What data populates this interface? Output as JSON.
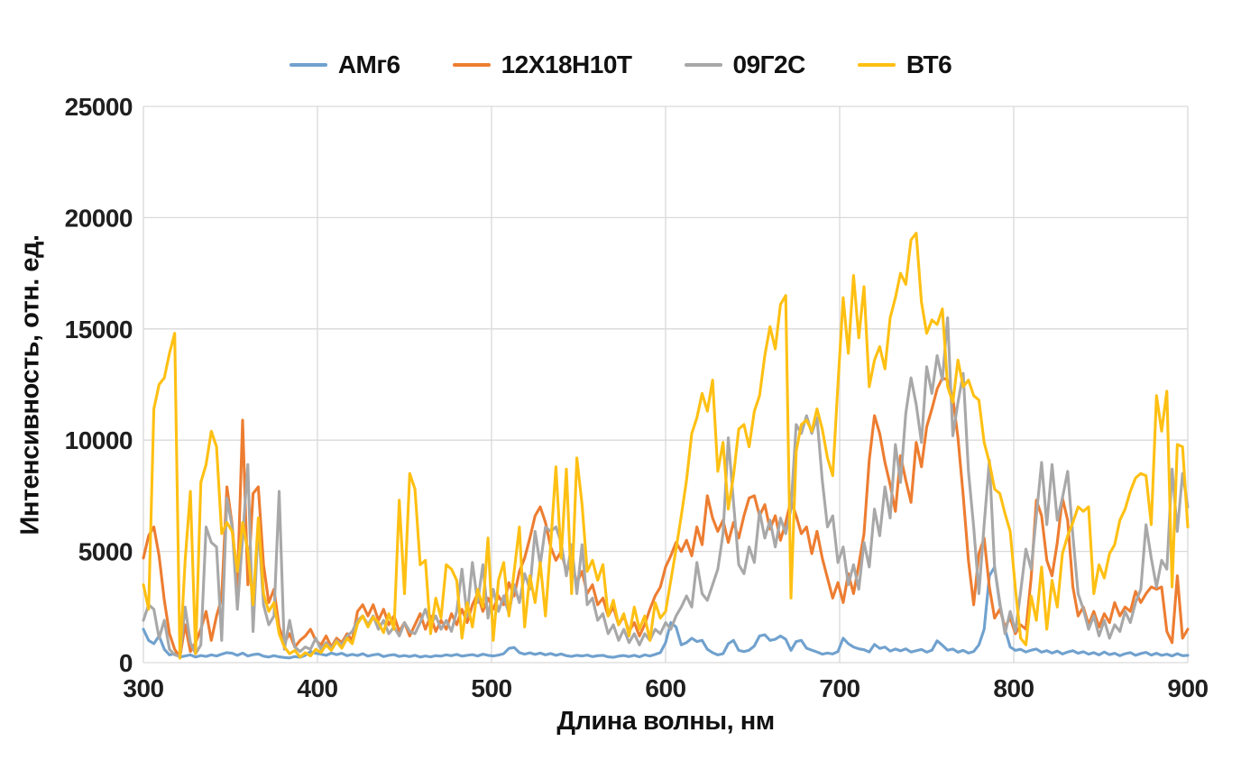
{
  "chart_data": {
    "type": "line",
    "xlabel": "Длина волны, нм",
    "ylabel": "Интенсивность, отн. ед.",
    "xlim": [
      300,
      900
    ],
    "ylim": [
      0,
      25000
    ],
    "x_ticks": [
      300,
      400,
      500,
      600,
      700,
      800,
      900
    ],
    "y_ticks": [
      0,
      5000,
      10000,
      15000,
      20000,
      25000
    ],
    "grid": true,
    "legend_position": "top-center",
    "grid_color": "#d9d9d9",
    "x_start": 300,
    "x_step": 3,
    "series": [
      {
        "name": "АМг6",
        "color": "#70A1CE",
        "values": [
          1500,
          1000,
          850,
          1200,
          600,
          350,
          400,
          250,
          300,
          350,
          250,
          320,
          280,
          350,
          300,
          380,
          450,
          420,
          330,
          430,
          300,
          360,
          390,
          290,
          250,
          310,
          260,
          230,
          210,
          270,
          240,
          330,
          500,
          420,
          380,
          330,
          430,
          360,
          420,
          310,
          370,
          320,
          400,
          290,
          350,
          380,
          270,
          330,
          360,
          280,
          320,
          270,
          330,
          250,
          300,
          260,
          310,
          290,
          350,
          310,
          370,
          290,
          330,
          360,
          300,
          380,
          330,
          300,
          340,
          400,
          640,
          680,
          450,
          380,
          440,
          370,
          430,
          350,
          410,
          330,
          390,
          310,
          280,
          330,
          300,
          340,
          270,
          310,
          330,
          260,
          240,
          290,
          320,
          270,
          330,
          260,
          350,
          300,
          370,
          450,
          900,
          1800,
          1600,
          800,
          900,
          1100,
          950,
          1000,
          600,
          450,
          350,
          400,
          850,
          1000,
          550,
          500,
          560,
          750,
          1200,
          1250,
          1000,
          1050,
          1200,
          1050,
          550,
          950,
          1000,
          650,
          560,
          480,
          380,
          430,
          390,
          500,
          1100,
          850,
          700,
          620,
          580,
          480,
          820,
          640,
          700,
          520,
          610,
          530,
          620,
          480,
          540,
          590,
          470,
          560,
          980,
          780,
          560,
          610,
          470,
          550,
          430,
          500,
          800,
          1500,
          3900,
          4300,
          2600,
          1500,
          700,
          550,
          600,
          480,
          560,
          610,
          470,
          540,
          430,
          520,
          390,
          480,
          540,
          420,
          490,
          380,
          450,
          350,
          480,
          360,
          420,
          310,
          400,
          450,
          330,
          410,
          460,
          340,
          420,
          330,
          380,
          300,
          400,
          310,
          330
        ]
      },
      {
        "name": "12Х18Н10Т",
        "color": "#ED7D31",
        "values": [
          4700,
          5700,
          6100,
          4800,
          2800,
          1300,
          600,
          250,
          1700,
          500,
          900,
          1500,
          2300,
          1000,
          2100,
          2900,
          7900,
          6200,
          3400,
          10900,
          3500,
          7600,
          7900,
          4400,
          2700,
          3300,
          1600,
          900,
          1300,
          700,
          1000,
          1200,
          1500,
          1000,
          800,
          1200,
          700,
          1100,
          900,
          1300,
          1000,
          2300,
          2600,
          2100,
          2600,
          1900,
          2400,
          1700,
          2100,
          1400,
          1800,
          1200,
          1700,
          2200,
          1500,
          2100,
          1400,
          1900,
          1500,
          2200,
          1700,
          2400,
          1800,
          2600,
          3100,
          2300,
          2900,
          2400,
          3000,
          2600,
          3600,
          3000,
          4100,
          4700,
          5600,
          6600,
          7000,
          6300,
          5200,
          4600,
          5000,
          4100,
          4500,
          3600,
          4100,
          3100,
          3500,
          2600,
          2900,
          2100,
          2500,
          1700,
          2100,
          1400,
          1800,
          1200,
          1700,
          2400,
          3000,
          3400,
          4300,
          4800,
          5400,
          5000,
          5500,
          4800,
          6100,
          5300,
          7500,
          6500,
          5900,
          6400,
          5400,
          6300,
          5600,
          6600,
          7400,
          7500,
          6600,
          7100,
          6000,
          6600,
          5500,
          6300,
          7300,
          6600,
          5800,
          6100,
          4900,
          5900,
          4700,
          3800,
          2900,
          3600,
          2700,
          4000,
          3100,
          4400,
          5800,
          9100,
          11100,
          10300,
          9000,
          8000,
          6800,
          9300,
          8200,
          7200,
          9900,
          8800,
          10600,
          11400,
          12300,
          12800,
          12700,
          11900,
          10100,
          7500,
          4600,
          2600,
          4900,
          5600,
          3400,
          2000,
          2400,
          1600,
          2000,
          1300,
          1700,
          1500,
          3800,
          7300,
          6600,
          4600,
          3900,
          5400,
          7400,
          6400,
          3400,
          2100,
          2500,
          1700,
          2300,
          1600,
          2200,
          1800,
          2700,
          2100,
          2500,
          2300,
          3200,
          2700,
          3100,
          3400,
          3300,
          3400,
          1400,
          900,
          3900,
          1100,
          1500
        ]
      },
      {
        "name": "09Г2С",
        "color": "#A8A8A8",
        "values": [
          1900,
          2600,
          2400,
          1100,
          1900,
          600,
          350,
          280,
          2500,
          900,
          400,
          800,
          6100,
          5400,
          5200,
          1000,
          7400,
          6100,
          2400,
          5600,
          8900,
          1400,
          6200,
          2600,
          1700,
          2100,
          7700,
          600,
          1900,
          700,
          500,
          700,
          600,
          1100,
          600,
          900,
          650,
          1000,
          800,
          1200,
          1400,
          1900,
          2100,
          1700,
          2100,
          1500,
          1900,
          1300,
          1600,
          1200,
          1800,
          1400,
          1300,
          1800,
          2400,
          1700,
          2100,
          1500,
          1900,
          1400,
          2300,
          4200,
          2100,
          4500,
          2700,
          4400,
          2000,
          3300,
          2300,
          3000,
          2200,
          3500,
          2700,
          4000,
          3300,
          5900,
          4400,
          6100,
          5900,
          6100,
          5400,
          3900,
          5300,
          3100,
          5300,
          2600,
          2900,
          1900,
          2200,
          1300,
          1700,
          1000,
          1500,
          900,
          1300,
          800,
          1300,
          1000,
          1500,
          1300,
          1800,
          1500,
          2100,
          2500,
          3000,
          2500,
          4500,
          3100,
          2800,
          3500,
          4200,
          5800,
          10100,
          7200,
          4400,
          4000,
          5200,
          4500,
          6800,
          5600,
          6400,
          5200,
          6500,
          5800,
          6900,
          10700,
          10300,
          11100,
          10300,
          11000,
          8200,
          6100,
          6600,
          4500,
          5200,
          3500,
          4400,
          3300,
          5400,
          4300,
          6900,
          5700,
          7900,
          6500,
          9800,
          8100,
          11200,
          12800,
          11600,
          9900,
          13300,
          12100,
          13800,
          12700,
          15500,
          10200,
          11700,
          13000,
          8600,
          6100,
          3100,
          6200,
          9100,
          4300,
          2700,
          1300,
          2300,
          1400,
          3200,
          5100,
          4200,
          6600,
          9000,
          6200,
          8900,
          6400,
          7400,
          8600,
          5700,
          3100,
          2400,
          1500,
          2100,
          1200,
          1900,
          1100,
          1700,
          1400,
          2300,
          1800,
          2700,
          3300,
          6200,
          4700,
          3400,
          4600,
          4200,
          8700,
          5900,
          8500,
          7000
        ]
      },
      {
        "name": "ВТ6",
        "color": "#FFC013",
        "values": [
          3500,
          2400,
          11400,
          12500,
          12800,
          13900,
          14800,
          200,
          4600,
          7700,
          400,
          8100,
          8900,
          10400,
          9700,
          5800,
          6300,
          5900,
          4100,
          6300,
          5000,
          2600,
          6500,
          3100,
          2300,
          2700,
          1300,
          700,
          400,
          550,
          250,
          450,
          300,
          600,
          450,
          800,
          550,
          950,
          650,
          1100,
          850,
          1750,
          2100,
          1600,
          2050,
          1800,
          1350,
          2200,
          1500,
          7300,
          3100,
          8500,
          7800,
          4400,
          4600,
          1300,
          2900,
          2000,
          4400,
          4200,
          3700,
          1100,
          2700,
          1600,
          3300,
          2500,
          5600,
          1000,
          3700,
          4500,
          2100,
          4100,
          6100,
          1600,
          3900,
          2700,
          4500,
          2100,
          5300,
          8800,
          4700,
          8700,
          3100,
          9200,
          7100,
          4100,
          4600,
          3700,
          4400,
          2100,
          2800,
          1700,
          2200,
          1200,
          2500,
          1500,
          2100,
          1000,
          2700,
          2000,
          2300,
          3700,
          5100,
          6600,
          8200,
          10300,
          11000,
          12100,
          11300,
          12700,
          8600,
          9900,
          6900,
          8400,
          10500,
          10700,
          9700,
          11300,
          12000,
          13800,
          15100,
          14100,
          16100,
          16500,
          2900,
          9500,
          10700,
          10900,
          10400,
          11400,
          10500,
          9200,
          8400,
          12500,
          16400,
          13900,
          17400,
          14600,
          16900,
          12400,
          13600,
          14200,
          13200,
          15500,
          16400,
          17500,
          17000,
          19000,
          19300,
          16200,
          14800,
          15400,
          15200,
          15900,
          12400,
          11700,
          13600,
          12400,
          12700,
          12000,
          11800,
          9900,
          9000,
          7800,
          7600,
          6700,
          5900,
          3300,
          1100,
          800,
          3000,
          1900,
          4300,
          1500,
          3700,
          2500,
          4900,
          5700,
          6300,
          7000,
          6800,
          7000,
          3100,
          4400,
          3800,
          4900,
          5300,
          6400,
          6900,
          7700,
          8300,
          8500,
          8400,
          6200,
          12000,
          10400,
          12200,
          3400,
          9800,
          9700,
          6100
        ]
      }
    ]
  }
}
